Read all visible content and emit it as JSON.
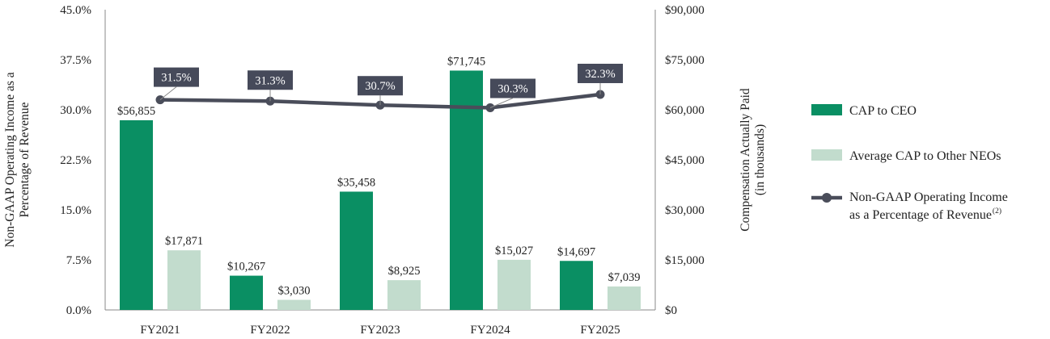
{
  "chart_data": {
    "type": "bar",
    "categories": [
      "FY2021",
      "FY2022",
      "FY2023",
      "FY2024",
      "FY2025"
    ],
    "series": [
      {
        "name": "CAP to CEO",
        "type": "bar",
        "axis": "right",
        "color": "#0a8f63",
        "values": [
          56855,
          10267,
          35458,
          71745,
          14697
        ],
        "labels": [
          "$56,855",
          "$10,267",
          "$35,458",
          "$71,745",
          "$14,697"
        ]
      },
      {
        "name": "Average CAP to Other NEOs",
        "type": "bar",
        "axis": "right",
        "color": "#c2dccd",
        "values": [
          17871,
          3030,
          8925,
          15027,
          7039
        ],
        "labels": [
          "$17,871",
          "$3,030",
          "$8,925",
          "$15,027",
          "$7,039"
        ]
      },
      {
        "name": "Non-GAAP Operating Income as a Percentage of Revenue",
        "name_sup": "(2)",
        "type": "line",
        "axis": "left",
        "color": "#4a4d5a",
        "values": [
          31.5,
          31.3,
          30.7,
          30.3,
          32.3
        ],
        "labels": [
          "31.5%",
          "31.3%",
          "30.7%",
          "30.3%",
          "32.3%"
        ]
      }
    ],
    "left_axis": {
      "label_line1": "Non-GAAP Operating Income as a",
      "label_line2": "Percentage of Revenue",
      "ylim": [
        0,
        45
      ],
      "ticks": [
        0,
        7.5,
        15,
        22.5,
        30,
        37.5,
        45
      ],
      "tick_labels": [
        "0.0%",
        "7.5%",
        "15.0%",
        "22.5%",
        "30.0%",
        "37.5%",
        "45.0%"
      ]
    },
    "right_axis": {
      "label_line1": "Compensation Actually Paid",
      "label_line2": "(in thousands)",
      "ylim": [
        0,
        90000
      ],
      "ticks": [
        0,
        15000,
        30000,
        45000,
        60000,
        75000,
        90000
      ],
      "tick_labels": [
        "$0",
        "$15,000",
        "$30,000",
        "$45,000",
        "$60,000",
        "$75,000",
        "$90,000"
      ]
    },
    "legend": {
      "position": "right",
      "items": [
        {
          "text": "CAP to CEO"
        },
        {
          "text": "Average CAP to Other NEOs"
        },
        {
          "text_line1": "Non-GAAP Operating Income",
          "text_line2": "as a Percentage of Revenue",
          "sup": "(2)"
        }
      ]
    },
    "grid": false
  }
}
